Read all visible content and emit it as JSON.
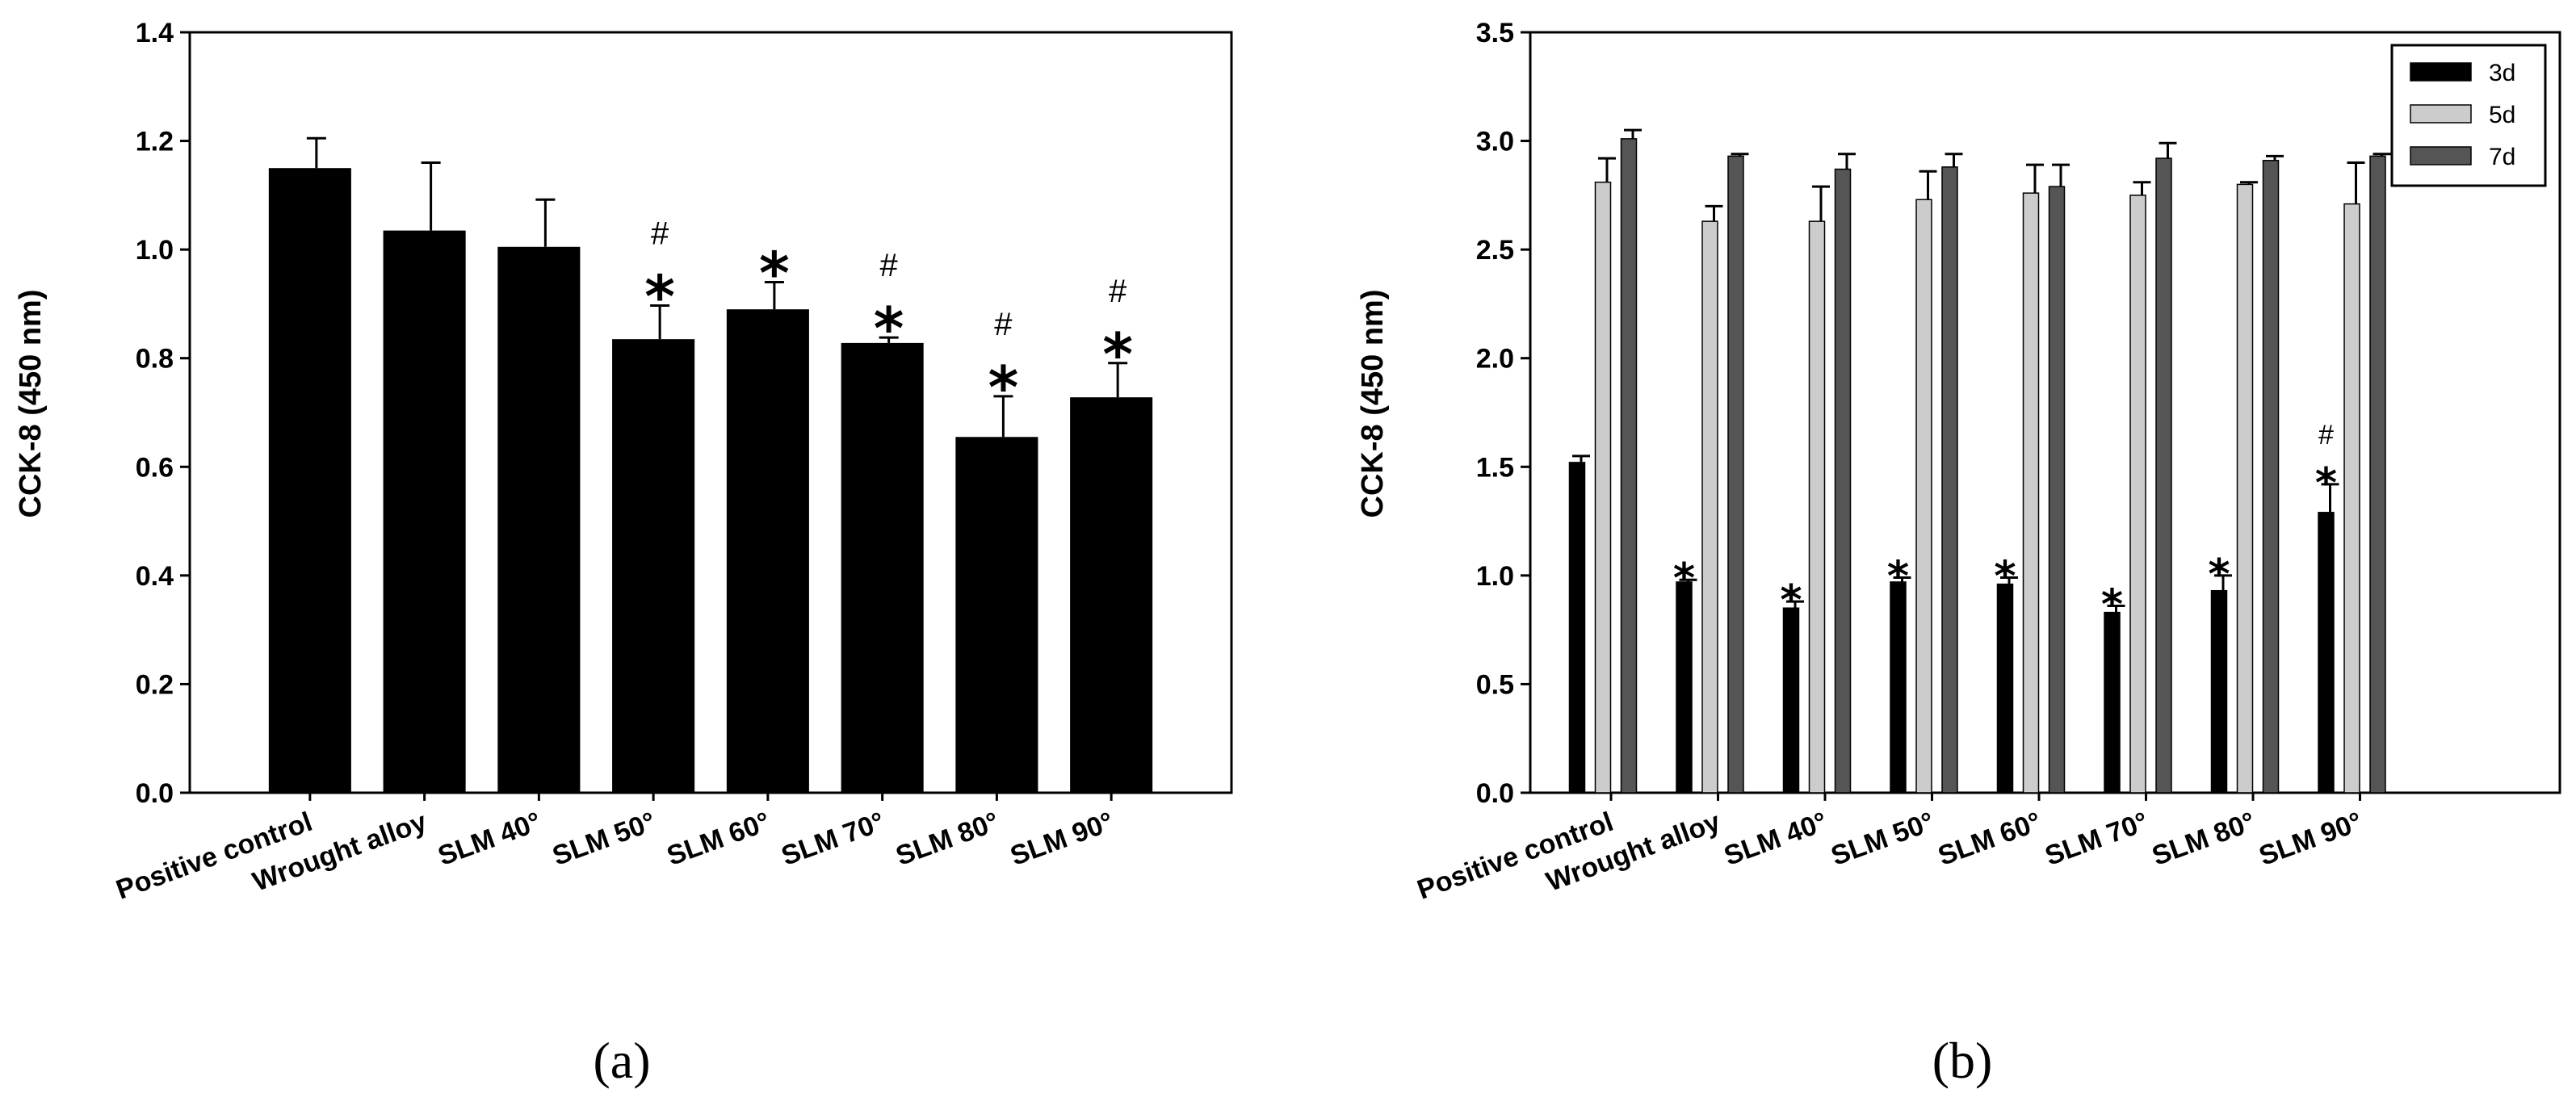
{
  "chart_data": [
    {
      "panel_label": "(a)",
      "type": "bar",
      "title": "",
      "xlabel": "",
      "ylabel": "CCK-8 (450 nm)",
      "ylim": [
        0,
        1.4
      ],
      "yticks": [
        "0.0",
        "0.2",
        "0.4",
        "0.6",
        "0.8",
        "1.0",
        "1.2",
        "1.4"
      ],
      "categories": [
        "Positive control",
        "Wrought alloy",
        "SLM 40°",
        "SLM 50°",
        "SLM 60°",
        "SLM 70°",
        "SLM 80°",
        "SLM 90°"
      ],
      "values": [
        1.15,
        1.035,
        1.005,
        0.835,
        0.89,
        0.828,
        0.655,
        0.728
      ],
      "errors": [
        0.055,
        0.125,
        0.087,
        0.062,
        0.05,
        0.01,
        0.075,
        0.063
      ],
      "color": "#000000",
      "significance": [
        {
          "category_index": 3,
          "marks": [
            "#",
            "*"
          ]
        },
        {
          "category_index": 4,
          "marks": [
            "*"
          ]
        },
        {
          "category_index": 5,
          "marks": [
            "#",
            "*"
          ]
        },
        {
          "category_index": 6,
          "marks": [
            "#",
            "*"
          ]
        },
        {
          "category_index": 7,
          "marks": [
            "#",
            "*"
          ]
        }
      ],
      "grid": false
    },
    {
      "panel_label": "(b)",
      "type": "bar",
      "title": "",
      "xlabel": "",
      "ylabel": "CCK-8 (450 nm)",
      "ylim": [
        0,
        3.5
      ],
      "yticks": [
        "0.0",
        "0.5",
        "1.0",
        "1.5",
        "2.0",
        "2.5",
        "3.0",
        "3.5"
      ],
      "categories": [
        "Positive control",
        "Wrought alloy",
        "SLM 40°",
        "SLM 50°",
        "SLM 60°",
        "SLM 70°",
        "SLM 80°",
        "SLM 90°"
      ],
      "series": [
        {
          "name": "3d",
          "color": "#000000",
          "values": [
            1.52,
            0.97,
            0.85,
            0.97,
            0.96,
            0.83,
            0.93,
            1.29
          ],
          "errors": [
            0.03,
            0.01,
            0.03,
            0.02,
            0.03,
            0.03,
            0.07,
            0.13
          ]
        },
        {
          "name": "5d",
          "color": "#cccccc",
          "values": [
            2.81,
            2.63,
            2.63,
            2.73,
            2.76,
            2.75,
            2.8,
            2.71
          ],
          "errors": [
            0.11,
            0.07,
            0.16,
            0.13,
            0.13,
            0.06,
            0.01,
            0.19
          ]
        },
        {
          "name": "7d",
          "color": "#555555",
          "values": [
            3.01,
            2.93,
            2.87,
            2.88,
            2.79,
            2.92,
            2.91,
            2.93
          ],
          "errors": [
            0.04,
            0.01,
            0.07,
            0.06,
            0.1,
            0.07,
            0.02,
            0.01
          ]
        }
      ],
      "significance": [
        {
          "category_index": 1,
          "series": "3d",
          "marks": [
            "*"
          ]
        },
        {
          "category_index": 2,
          "series": "3d",
          "marks": [
            "*"
          ]
        },
        {
          "category_index": 3,
          "series": "3d",
          "marks": [
            "*"
          ]
        },
        {
          "category_index": 4,
          "series": "3d",
          "marks": [
            "*"
          ]
        },
        {
          "category_index": 5,
          "series": "3d",
          "marks": [
            "*"
          ]
        },
        {
          "category_index": 6,
          "series": "3d",
          "marks": [
            "*"
          ]
        },
        {
          "category_index": 7,
          "series": "3d",
          "marks": [
            "#",
            "*"
          ]
        }
      ],
      "legend": {
        "position": "top-right",
        "entries": [
          "3d",
          "5d",
          "7d"
        ]
      },
      "grid": false
    }
  ]
}
